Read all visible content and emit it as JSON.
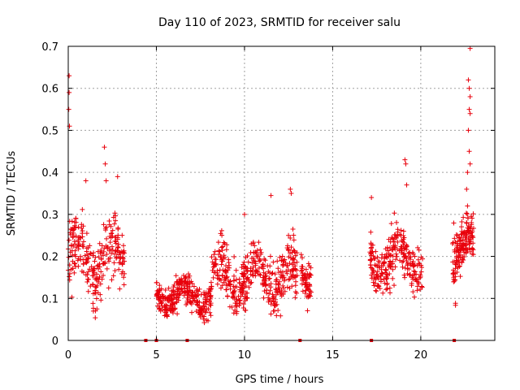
{
  "chart_data": {
    "type": "scatter",
    "title": "Day 110 of 2023, SRMTID for receiver salu",
    "xlabel": "GPS time / hours",
    "ylabel": "SRMTID / TECUs",
    "xlim": [
      0,
      24.2
    ],
    "ylim": [
      0,
      0.7
    ],
    "x_ticks": [
      0,
      5,
      10,
      15,
      20
    ],
    "x_tick_labels": [
      "0",
      "5",
      "10",
      "15",
      "20"
    ],
    "y_ticks": [
      0,
      0.1,
      0.2,
      0.3,
      0.4,
      0.5,
      0.6,
      0.7
    ],
    "y_tick_labels": [
      "0",
      "0.1",
      "0.2",
      "0.3",
      "0.4",
      "0.5",
      "0.6",
      "0.7"
    ],
    "grid": true,
    "marker": "+",
    "color": "#e8000b",
    "segments": [
      {
        "x_start": 0.0,
        "x_end": 3.2,
        "mean": 0.19,
        "spread": 0.07,
        "count": 260
      },
      {
        "x_start": 5.0,
        "x_end": 8.1,
        "mean": 0.105,
        "spread": 0.035,
        "count": 300
      },
      {
        "x_start": 8.1,
        "x_end": 13.0,
        "mean": 0.15,
        "spread": 0.055,
        "count": 420
      },
      {
        "x_start": 13.2,
        "x_end": 13.8,
        "mean": 0.16,
        "spread": 0.045,
        "count": 60
      },
      {
        "x_start": 17.1,
        "x_end": 20.1,
        "mean": 0.19,
        "spread": 0.055,
        "count": 260
      },
      {
        "x_start": 21.8,
        "x_end": 23.0,
        "mean": 0.22,
        "spread": 0.06,
        "count": 160
      }
    ],
    "outliers": [
      {
        "x": 0.05,
        "y": 0.63
      },
      {
        "x": 0.05,
        "y": 0.59
      },
      {
        "x": 0.03,
        "y": 0.55
      },
      {
        "x": 0.07,
        "y": 0.51
      },
      {
        "x": 0.12,
        "y": 0.21
      },
      {
        "x": 2.05,
        "y": 0.46
      },
      {
        "x": 2.1,
        "y": 0.42
      },
      {
        "x": 2.15,
        "y": 0.38
      },
      {
        "x": 2.8,
        "y": 0.39
      },
      {
        "x": 1.0,
        "y": 0.38
      },
      {
        "x": 12.6,
        "y": 0.36
      },
      {
        "x": 12.65,
        "y": 0.35
      },
      {
        "x": 11.5,
        "y": 0.345
      },
      {
        "x": 10.0,
        "y": 0.3
      },
      {
        "x": 17.2,
        "y": 0.34
      },
      {
        "x": 19.1,
        "y": 0.43
      },
      {
        "x": 19.15,
        "y": 0.42
      },
      {
        "x": 19.2,
        "y": 0.37
      },
      {
        "x": 22.8,
        "y": 0.695
      },
      {
        "x": 22.7,
        "y": 0.62
      },
      {
        "x": 22.75,
        "y": 0.6
      },
      {
        "x": 22.8,
        "y": 0.58
      },
      {
        "x": 22.75,
        "y": 0.55
      },
      {
        "x": 22.8,
        "y": 0.54
      },
      {
        "x": 22.7,
        "y": 0.5
      },
      {
        "x": 22.75,
        "y": 0.45
      },
      {
        "x": 22.8,
        "y": 0.42
      },
      {
        "x": 22.65,
        "y": 0.4
      },
      {
        "x": 22.6,
        "y": 0.36
      }
    ],
    "zero_markers": [
      4.4,
      5.0,
      6.75,
      13.15,
      17.2,
      21.9
    ]
  }
}
